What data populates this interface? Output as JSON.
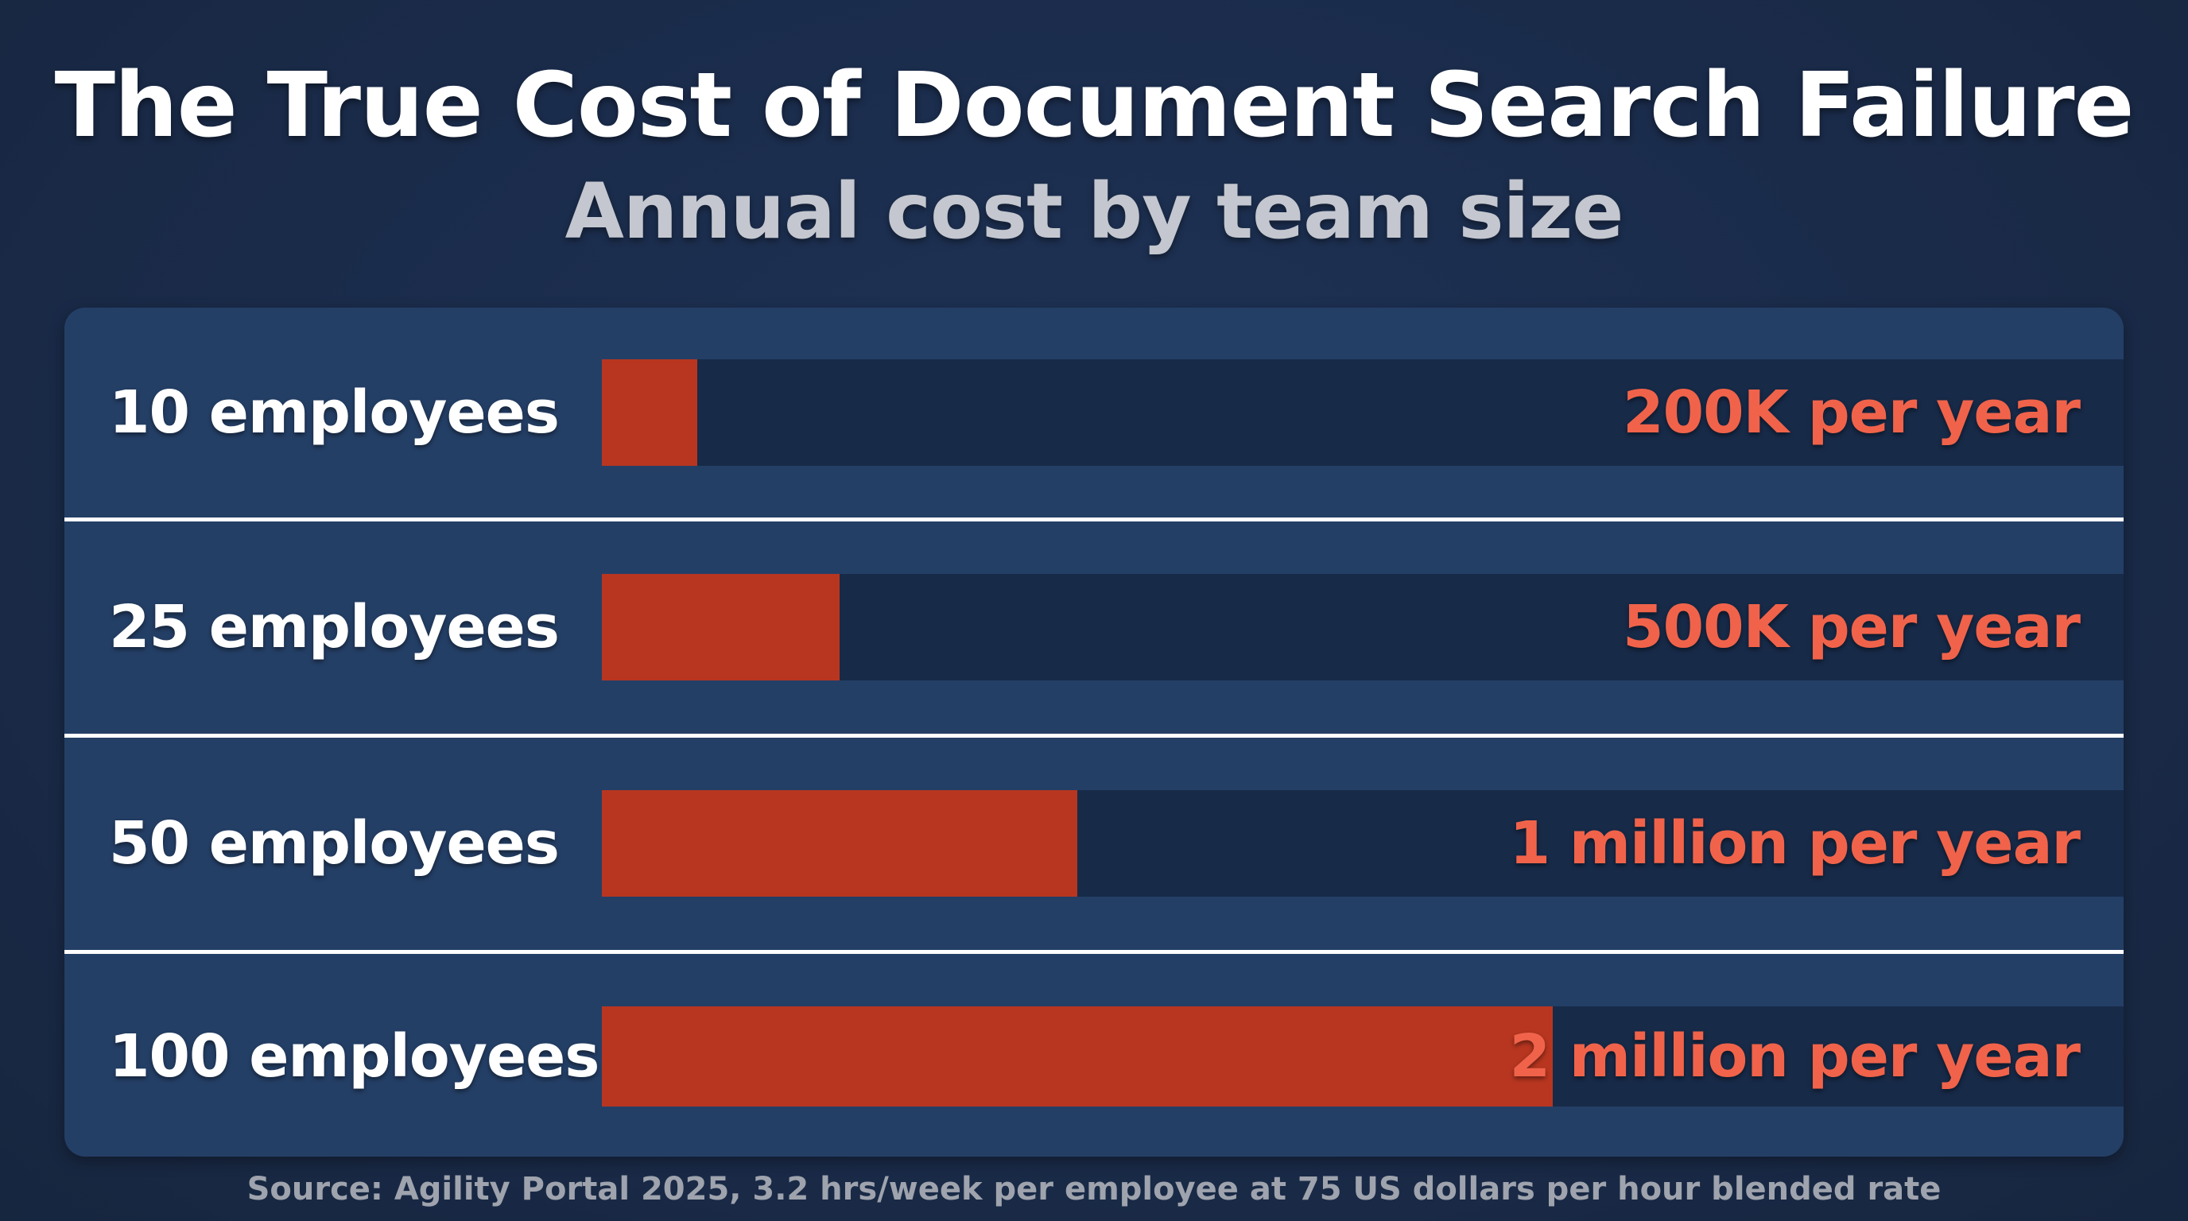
{
  "title": "The True Cost of Document Search Failure",
  "subtitle": "Annual cost by team size",
  "source": "Source: Agility Portal 2025, 3.2 hrs/week per employee at 75 US dollars per hour blended rate",
  "colors": {
    "background": "#1a2b4a",
    "panel": "#243f66",
    "track": "#172a48",
    "bar": "#b83620",
    "value_text": "#f0634a",
    "title_text": "#ffffff",
    "subtitle_text": "#c4c7cf"
  },
  "chart_data": {
    "type": "bar",
    "orientation": "horizontal",
    "title": "The True Cost of Document Search Failure",
    "subtitle": "Annual cost by team size",
    "categories": [
      "10 employees",
      "25 employees",
      "50 employees",
      "100 employees"
    ],
    "values": [
      200000,
      500000,
      1000000,
      2000000
    ],
    "data_labels": [
      "200K per year",
      "500K per year",
      "1 million per year",
      "2 million per year"
    ],
    "xlim": [
      0,
      3200000
    ],
    "grid": false,
    "legend": "none"
  }
}
